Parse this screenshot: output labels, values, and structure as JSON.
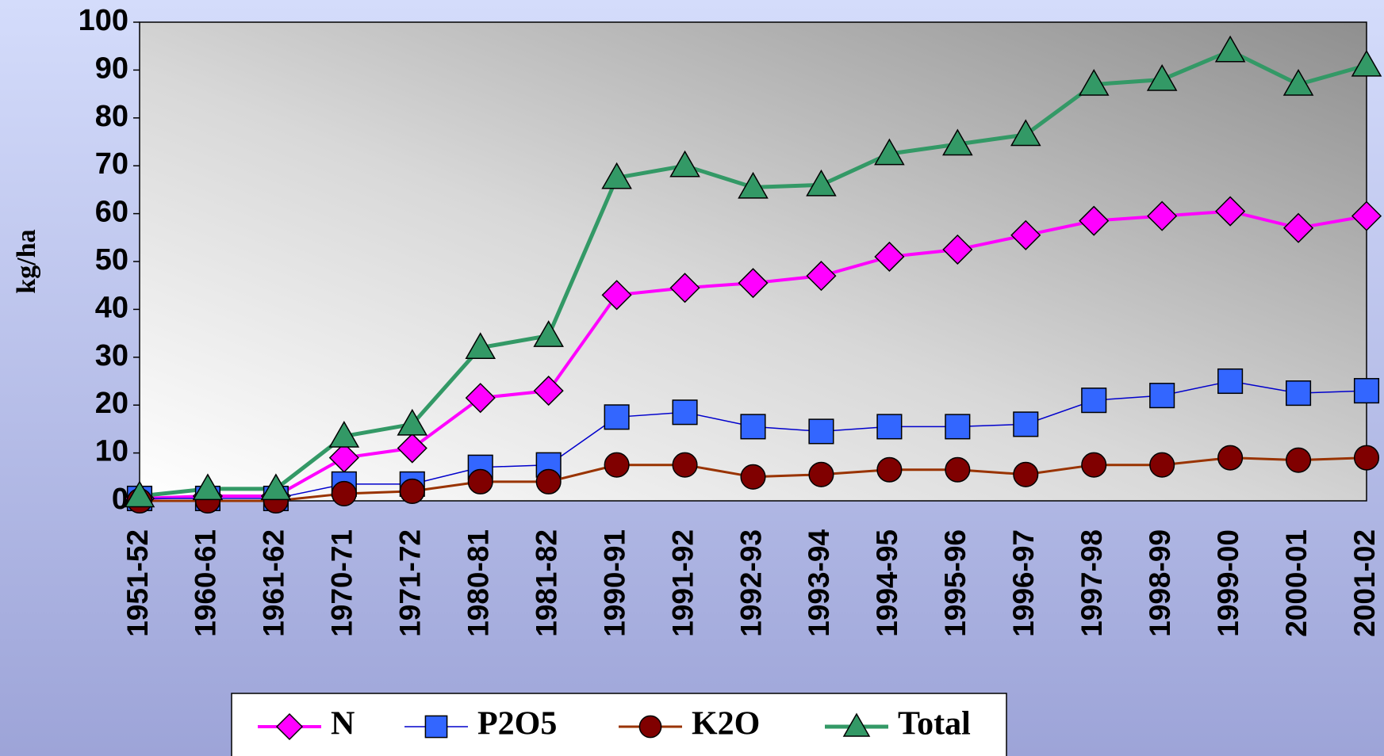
{
  "chart_data": {
    "type": "line",
    "ylabel": "kg/ha",
    "categories": [
      "1951-52",
      "1960-61",
      "1961-62",
      "1970-71",
      "1971-72",
      "1980-81",
      "1981-82",
      "1990-91",
      "1991-92",
      "1992-93",
      "1993-94",
      "1994-95",
      "1995-96",
      "1996-97",
      "1997-98",
      "1998-99",
      "1999-00",
      "2000-01",
      "2001-02"
    ],
    "series": [
      {
        "name": "N",
        "color": "#ff00ff",
        "marker": "diamond",
        "values": [
          0.5,
          1,
          1,
          9,
          11,
          21.5,
          23,
          43,
          44.5,
          45.5,
          47,
          51,
          52.5,
          55.5,
          58.5,
          59.5,
          60.5,
          57,
          59.5
        ]
      },
      {
        "name": "P2O5",
        "color": "#3366ff",
        "marker": "square",
        "values": [
          0.5,
          0.5,
          0.5,
          3.5,
          3.5,
          7,
          7.5,
          17.5,
          18.5,
          15.5,
          14.5,
          15.5,
          15.5,
          16,
          21,
          22,
          25,
          22.5,
          23
        ]
      },
      {
        "name": "K2O",
        "color": "#800000",
        "marker": "circle",
        "values": [
          0,
          0,
          0,
          1.5,
          2,
          4,
          4,
          7.5,
          7.5,
          5,
          5.5,
          6.5,
          6.5,
          5.5,
          7.5,
          7.5,
          9,
          8.5,
          9
        ]
      },
      {
        "name": "Total",
        "color": "#339966",
        "marker": "triangle",
        "values": [
          1,
          2.5,
          2.5,
          13.5,
          16,
          32,
          34.5,
          67.5,
          70,
          65.5,
          66,
          72.5,
          74.5,
          76.5,
          87,
          88,
          94,
          87,
          91
        ]
      }
    ],
    "ylim": [
      0,
      100
    ],
    "yticks": [
      0,
      10,
      20,
      30,
      40,
      50,
      60,
      70,
      80,
      90,
      100
    ],
    "legend": "bottom"
  }
}
